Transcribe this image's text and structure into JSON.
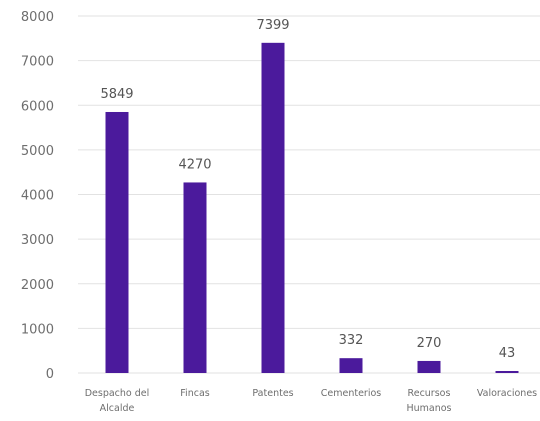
{
  "chart_data": {
    "type": "bar",
    "categories": [
      "Despacho del Alcalde",
      "Fincas",
      "Patentes",
      "Cementerios",
      "Recursos Humanos",
      "Valoraciones"
    ],
    "category_lines": [
      [
        "Despacho del",
        "Alcalde"
      ],
      [
        "Fincas"
      ],
      [
        "Patentes"
      ],
      [
        "Cementerios"
      ],
      [
        "Recursos",
        "Humanos"
      ],
      [
        "Valoraciones"
      ]
    ],
    "values": [
      5849,
      4270,
      7399,
      332,
      270,
      43
    ],
    "data_labels": [
      "5849",
      "4270",
      "7399",
      "332",
      "270",
      "43"
    ],
    "yticks": [
      0,
      1000,
      2000,
      3000,
      4000,
      5000,
      6000,
      7000,
      8000
    ],
    "ytick_labels": [
      "0",
      "1000",
      "2000",
      "3000",
      "4000",
      "5000",
      "6000",
      "7000",
      "8000"
    ],
    "ylim": [
      0,
      8000
    ],
    "grid": true,
    "legend": "none",
    "bar_color": "#4b1a9c",
    "grid_color": "#e2e2e2",
    "text_color": "#6e6e6e"
  }
}
